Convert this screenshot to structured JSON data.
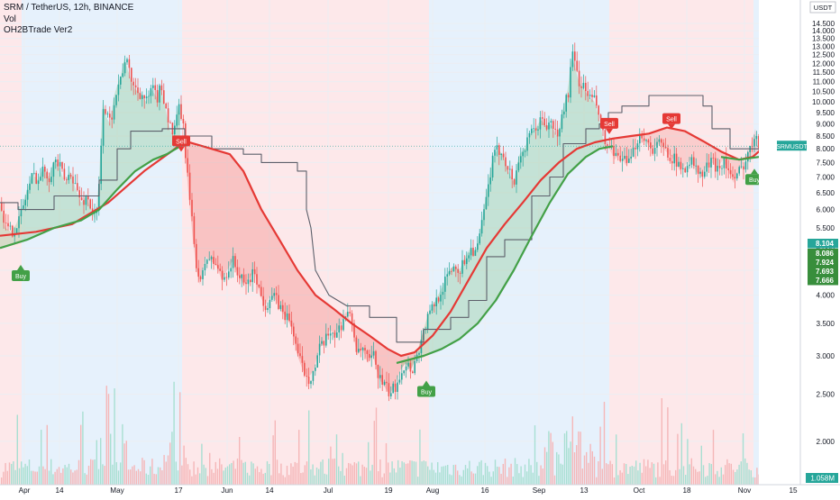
{
  "chart_data": {
    "type": "candlestick",
    "symbol_title": "SRM / TetherUS, 12h, BINANCE",
    "indicators": [
      "Vol",
      "OH2BTrade Ver2"
    ],
    "currency_label": "USDT",
    "ticker_label": "SRMUSDT",
    "ylim": [
      1.7,
      15.0
    ],
    "y_scale": "log",
    "y_ticks": [
      "2.000",
      "2.500",
      "3.000",
      "3.500",
      "4.000",
      "4.500",
      "5.000",
      "5.500",
      "6.000",
      "6.500",
      "7.000",
      "7.500",
      "8.000",
      "8.500",
      "9.000",
      "9.500",
      "10.000",
      "10.500",
      "11.000",
      "11.500",
      "12.000",
      "12.500",
      "13.000",
      "13.500",
      "14.000",
      "14.500"
    ],
    "x_ticks": [
      "Apr",
      "14",
      "May",
      "17",
      "Jun",
      "14",
      "Jul",
      "19",
      "Aug",
      "16",
      "Sep",
      "13",
      "Oct",
      "18",
      "Nov",
      "15"
    ],
    "date_range": [
      "Apr",
      "Nov"
    ],
    "price_labels": [
      {
        "text": "8.104",
        "color": "#26a69a"
      },
      {
        "text": "8.086",
        "color": "#388e3c"
      },
      {
        "text": "7.924",
        "color": "#388e3c"
      },
      {
        "text": "7.693",
        "color": "#388e3c"
      },
      {
        "text": "7.666",
        "color": "#388e3c"
      }
    ],
    "volume_label": "1.058M",
    "signals": [
      {
        "label": "Buy",
        "date": "Apr 2",
        "price": 4.5
      },
      {
        "label": "Sell",
        "date": "May 19",
        "price": 8.1
      },
      {
        "label": "Buy",
        "date": "Jul 22",
        "price": 2.6
      },
      {
        "label": "Sell",
        "date": "Sep 21",
        "price": 8.8
      },
      {
        "label": "Sell",
        "date": "Oct 7",
        "price": 9.0
      },
      {
        "label": "Buy",
        "date": "Nov 1",
        "price": 7.1
      }
    ],
    "close_path": [
      [
        0,
        6.2
      ],
      [
        6,
        5.5
      ],
      [
        12,
        5.4
      ],
      [
        18,
        5.6
      ],
      [
        24,
        6.0
      ],
      [
        30,
        6.6
      ],
      [
        36,
        7.1
      ],
      [
        42,
        6.9
      ],
      [
        48,
        7.3
      ],
      [
        54,
        7.0
      ],
      [
        60,
        7.6
      ],
      [
        66,
        7.3
      ],
      [
        72,
        6.8
      ],
      [
        78,
        7.2
      ],
      [
        84,
        6.6
      ],
      [
        90,
        6.2
      ],
      [
        96,
        6.4
      ],
      [
        102,
        5.9
      ],
      [
        106,
        5.7
      ],
      [
        110,
        7.0
      ],
      [
        114,
        10.0
      ],
      [
        118,
        9.3
      ],
      [
        122,
        9.0
      ],
      [
        126,
        10.2
      ],
      [
        130,
        10.8
      ],
      [
        134,
        11.3
      ],
      [
        138,
        12.3
      ],
      [
        142,
        11.6
      ],
      [
        146,
        11.0
      ],
      [
        150,
        10.6
      ],
      [
        156,
        10.4
      ],
      [
        162,
        10.0
      ],
      [
        168,
        10.6
      ],
      [
        174,
        10.2
      ],
      [
        178,
        10.8
      ],
      [
        182,
        10.0
      ],
      [
        186,
        9.2
      ],
      [
        190,
        8.6
      ],
      [
        194,
        8.8
      ],
      [
        198,
        9.8
      ],
      [
        202,
        9.0
      ],
      [
        206,
        7.5
      ],
      [
        210,
        6.2
      ],
      [
        214,
        5.2
      ],
      [
        218,
        4.5
      ],
      [
        222,
        4.2
      ],
      [
        228,
        4.8
      ],
      [
        234,
        4.7
      ],
      [
        240,
        4.6
      ],
      [
        246,
        4.3
      ],
      [
        252,
        4.5
      ],
      [
        258,
        4.7
      ],
      [
        264,
        4.4
      ],
      [
        270,
        4.2
      ],
      [
        276,
        4.3
      ],
      [
        282,
        4.5
      ],
      [
        288,
        4.0
      ],
      [
        294,
        3.8
      ],
      [
        300,
        4.0
      ],
      [
        306,
        3.9
      ],
      [
        312,
        3.7
      ],
      [
        318,
        3.6
      ],
      [
        324,
        3.4
      ],
      [
        330,
        3.0
      ],
      [
        336,
        2.8
      ],
      [
        342,
        2.7
      ],
      [
        348,
        2.8
      ],
      [
        354,
        3.1
      ],
      [
        360,
        3.2
      ],
      [
        366,
        3.4
      ],
      [
        372,
        3.3
      ],
      [
        378,
        3.5
      ],
      [
        384,
        3.7
      ],
      [
        390,
        3.5
      ],
      [
        396,
        3.0
      ],
      [
        402,
        3.1
      ],
      [
        408,
        2.9
      ],
      [
        414,
        3.0
      ],
      [
        420,
        2.7
      ],
      [
        426,
        2.6
      ],
      [
        432,
        2.5
      ],
      [
        438,
        2.6
      ],
      [
        444,
        2.8
      ],
      [
        450,
        2.9
      ],
      [
        456,
        2.8
      ],
      [
        462,
        3.0
      ],
      [
        468,
        3.3
      ],
      [
        474,
        3.6
      ],
      [
        480,
        3.8
      ],
      [
        486,
        4.0
      ],
      [
        492,
        4.2
      ],
      [
        498,
        4.5
      ],
      [
        504,
        4.6
      ],
      [
        510,
        4.5
      ],
      [
        516,
        4.8
      ],
      [
        522,
        5.0
      ],
      [
        528,
        4.9
      ],
      [
        534,
        5.6
      ],
      [
        540,
        6.5
      ],
      [
        546,
        7.6
      ],
      [
        552,
        8.0
      ],
      [
        558,
        7.8
      ],
      [
        564,
        7.2
      ],
      [
        570,
        6.8
      ],
      [
        576,
        7.8
      ],
      [
        582,
        8.0
      ],
      [
        588,
        8.6
      ],
      [
        594,
        8.8
      ],
      [
        600,
        9.2
      ],
      [
        606,
        8.9
      ],
      [
        612,
        9.0
      ],
      [
        618,
        8.4
      ],
      [
        624,
        9.6
      ],
      [
        630,
        10.5
      ],
      [
        634,
        12.5
      ],
      [
        638,
        11.8
      ],
      [
        642,
        11.0
      ],
      [
        648,
        10.6
      ],
      [
        654,
        10.2
      ],
      [
        660,
        10.0
      ],
      [
        666,
        9.0
      ],
      [
        670,
        8.2
      ],
      [
        676,
        8.0
      ],
      [
        682,
        7.6
      ],
      [
        688,
        7.8
      ],
      [
        694,
        7.4
      ],
      [
        700,
        7.6
      ],
      [
        706,
        8.4
      ],
      [
        712,
        8.6
      ],
      [
        718,
        8.2
      ],
      [
        724,
        8.0
      ],
      [
        730,
        8.2
      ],
      [
        736,
        8.0
      ],
      [
        742,
        7.8
      ],
      [
        748,
        7.6
      ],
      [
        754,
        7.2
      ],
      [
        760,
        7.4
      ],
      [
        766,
        7.6
      ],
      [
        772,
        7.2
      ],
      [
        778,
        7.0
      ],
      [
        784,
        7.4
      ],
      [
        790,
        7.5
      ],
      [
        796,
        7.3
      ],
      [
        802,
        7.6
      ],
      [
        808,
        7.2
      ],
      [
        814,
        6.8
      ],
      [
        818,
        7.1
      ],
      [
        822,
        7.3
      ],
      [
        826,
        7.6
      ],
      [
        832,
        8.0
      ],
      [
        838,
        8.8
      ],
      [
        842,
        8.1
      ]
    ],
    "red_line": [
      [
        0,
        5.3
      ],
      [
        40,
        5.4
      ],
      [
        80,
        5.6
      ],
      [
        120,
        6.2
      ],
      [
        160,
        7.2
      ],
      [
        190,
        7.9
      ],
      [
        205,
        8.3
      ],
      [
        225,
        8.1
      ],
      [
        255,
        7.8
      ],
      [
        270,
        7.2
      ],
      [
        290,
        6.0
      ],
      [
        310,
        5.2
      ],
      [
        330,
        4.5
      ],
      [
        350,
        4.0
      ],
      [
        370,
        3.75
      ],
      [
        390,
        3.5
      ],
      [
        410,
        3.3
      ],
      [
        430,
        3.1
      ],
      [
        445,
        3.0
      ],
      [
        460,
        3.05
      ],
      [
        480,
        3.3
      ],
      [
        500,
        3.7
      ],
      [
        520,
        4.3
      ],
      [
        540,
        5.0
      ],
      [
        560,
        5.6
      ],
      [
        580,
        6.2
      ],
      [
        600,
        6.9
      ],
      [
        620,
        7.5
      ],
      [
        640,
        8.0
      ],
      [
        660,
        8.25
      ],
      [
        680,
        8.4
      ],
      [
        700,
        8.5
      ],
      [
        720,
        8.6
      ],
      [
        740,
        8.85
      ],
      [
        760,
        8.7
      ],
      [
        780,
        8.3
      ],
      [
        800,
        7.9
      ],
      [
        820,
        7.6
      ],
      [
        835,
        7.7
      ],
      [
        842,
        7.9
      ]
    ],
    "green_line": [
      [
        0,
        5.0
      ],
      [
        30,
        5.2
      ],
      [
        60,
        5.5
      ],
      [
        90,
        5.7
      ],
      [
        110,
        6.0
      ],
      [
        130,
        6.6
      ],
      [
        150,
        7.2
      ],
      [
        170,
        7.6
      ],
      [
        185,
        7.8
      ],
      [
        200,
        8.1
      ]
    ],
    "green_line_2": [
      [
        440,
        2.9
      ],
      [
        470,
        3.0
      ],
      [
        490,
        3.1
      ],
      [
        510,
        3.25
      ],
      [
        530,
        3.5
      ],
      [
        550,
        3.9
      ],
      [
        570,
        4.5
      ],
      [
        590,
        5.3
      ],
      [
        610,
        6.2
      ],
      [
        630,
        7.1
      ],
      [
        650,
        7.7
      ],
      [
        665,
        8.0
      ],
      [
        680,
        8.1
      ]
    ],
    "green_line_3": [
      [
        800,
        7.7
      ],
      [
        820,
        7.6
      ],
      [
        842,
        7.7
      ]
    ],
    "gray_step": [
      [
        0,
        6.2
      ],
      [
        20,
        6.2
      ],
      [
        20,
        6.0
      ],
      [
        60,
        6.0
      ],
      [
        60,
        6.4
      ],
      [
        110,
        6.4
      ],
      [
        110,
        6.9
      ],
      [
        130,
        6.9
      ],
      [
        130,
        8.0
      ],
      [
        145,
        8.0
      ],
      [
        145,
        8.7
      ],
      [
        180,
        8.7
      ],
      [
        180,
        8.8
      ],
      [
        205,
        8.8
      ],
      [
        205,
        8.5
      ],
      [
        235,
        8.5
      ],
      [
        235,
        8.0
      ],
      [
        270,
        8.0
      ],
      [
        270,
        7.8
      ],
      [
        290,
        7.8
      ],
      [
        290,
        7.5
      ],
      [
        330,
        7.5
      ],
      [
        330,
        7.2
      ],
      [
        340,
        7.2
      ],
      [
        340,
        6.0
      ],
      [
        345,
        5.5
      ],
      [
        350,
        4.5
      ],
      [
        365,
        4.0
      ],
      [
        385,
        3.8
      ],
      [
        410,
        3.8
      ],
      [
        410,
        3.6
      ],
      [
        440,
        3.6
      ],
      [
        440,
        3.2
      ],
      [
        470,
        3.2
      ],
      [
        470,
        3.4
      ],
      [
        500,
        3.4
      ],
      [
        500,
        3.6
      ],
      [
        520,
        3.6
      ],
      [
        520,
        3.9
      ],
      [
        540,
        3.9
      ],
      [
        540,
        4.8
      ],
      [
        560,
        4.8
      ],
      [
        560,
        5.2
      ],
      [
        590,
        5.2
      ],
      [
        590,
        6.4
      ],
      [
        610,
        6.4
      ],
      [
        610,
        7.0
      ],
      [
        625,
        7.0
      ],
      [
        625,
        8.2
      ],
      [
        650,
        8.2
      ],
      [
        650,
        8.8
      ],
      [
        665,
        8.8
      ],
      [
        665,
        9.0
      ],
      [
        675,
        9.0
      ],
      [
        675,
        9.5
      ],
      [
        690,
        9.5
      ],
      [
        690,
        9.8
      ],
      [
        720,
        9.8
      ],
      [
        720,
        10.3
      ],
      [
        780,
        10.3
      ],
      [
        780,
        9.8
      ],
      [
        790,
        9.8
      ],
      [
        790,
        8.8
      ],
      [
        810,
        8.8
      ],
      [
        810,
        8.0
      ],
      [
        842,
        8.0
      ]
    ]
  }
}
